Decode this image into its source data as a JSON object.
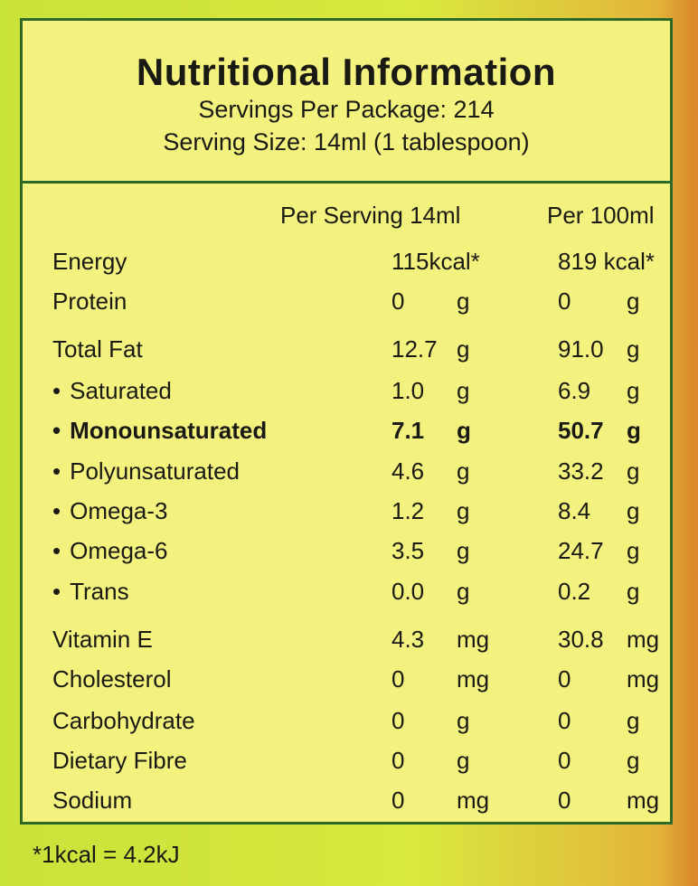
{
  "title": "Nutritional Information",
  "servings_per_package": "Servings Per Package: 214",
  "serving_size": "Serving Size: 14ml (1 tablespoon)",
  "columns": {
    "per_serving": "Per Serving 14ml",
    "per_100ml": "Per 100ml"
  },
  "rows": [
    {
      "label": "Energy",
      "serving": "115kcal*",
      "serving_unit": "",
      "per100": "819 kcal*",
      "per100_unit": ""
    },
    {
      "label": "Protein",
      "serving": "0",
      "serving_unit": "g",
      "per100": "0",
      "per100_unit": "g"
    },
    {
      "label": "Total Fat",
      "serving": "12.7",
      "serving_unit": "g",
      "per100": "91.0",
      "per100_unit": "g"
    },
    {
      "label": "Saturated",
      "serving": "1.0",
      "serving_unit": "g",
      "per100": "6.9",
      "per100_unit": "g"
    },
    {
      "label": "Monounsaturated",
      "serving": "7.1",
      "serving_unit": "g",
      "per100": "50.7",
      "per100_unit": "g"
    },
    {
      "label": "Polyunsaturated",
      "serving": "4.6",
      "serving_unit": "g",
      "per100": "33.2",
      "per100_unit": "g"
    },
    {
      "label": "Omega-3",
      "serving": "1.2",
      "serving_unit": "g",
      "per100": "8.4",
      "per100_unit": "g"
    },
    {
      "label": "Omega-6",
      "serving": "3.5",
      "serving_unit": "g",
      "per100": "24.7",
      "per100_unit": "g"
    },
    {
      "label": "Trans",
      "serving": "0.0",
      "serving_unit": "g",
      "per100": "0.2",
      "per100_unit": "g"
    },
    {
      "label": "Vitamin E",
      "serving": "4.3",
      "serving_unit": "mg",
      "per100": "30.8",
      "per100_unit": "mg"
    },
    {
      "label": "Cholesterol",
      "serving": "0",
      "serving_unit": "mg",
      "per100": "0",
      "per100_unit": "mg"
    },
    {
      "label": "Carbohydrate",
      "serving": "0",
      "serving_unit": "g",
      "per100": "0",
      "per100_unit": "g"
    },
    {
      "label": "Dietary Fibre",
      "serving": "0",
      "serving_unit": "g",
      "per100": "0",
      "per100_unit": "g"
    },
    {
      "label": "Sodium",
      "serving": "0",
      "serving_unit": "mg",
      "per100": "0",
      "per100_unit": "mg"
    }
  ],
  "footnote": "*1kcal = 4.2kJ",
  "colors": {
    "panel": "#f4f27e",
    "border": "#2d6a2a",
    "background": "#c9e23a"
  }
}
